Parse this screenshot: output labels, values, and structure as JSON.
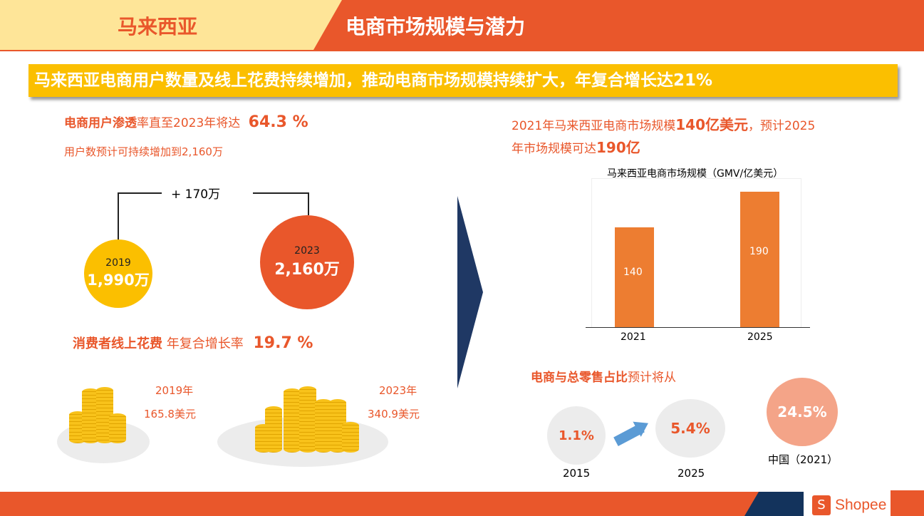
{
  "header": {
    "country": "马来西亚",
    "title": "电商市场规模与潜力"
  },
  "banner": "马来西亚电商用户数量及线上花费持续增加，推动电商市场规模持续扩大，年复合增长达21%",
  "users": {
    "line1_bold": "电商用户渗透",
    "line1_rest": "率直至2023年将达",
    "line1_value": "64.3 %",
    "line2": "用户数预计可持续增加到2,160万",
    "diff": "+ 170万",
    "y2019": "2019",
    "v2019": "1,990万",
    "y2023": "2023",
    "v2023": "2,160万"
  },
  "spend": {
    "label_bold": "消费者线上花费",
    "label_rest": "年复合增长率",
    "value": "19.7 %",
    "y2019": "2019年",
    "v2019": "165.8美元",
    "y2023": "2023年",
    "v2023": "340.9美元"
  },
  "market": {
    "line1a": "2021年马来西亚电商市场规模",
    "line1b": "140亿美元",
    "line1c": "，预计2025",
    "line2a": "年市场规模可达",
    "line2b": "190亿"
  },
  "chart_data": {
    "type": "bar",
    "title": "马来西亚电商市场规模（GMV/亿美元）",
    "categories": [
      "2021",
      "2025"
    ],
    "values": [
      140,
      190
    ],
    "ylim": [
      0,
      200
    ],
    "color": "#ed7d31",
    "grid": false
  },
  "retail": {
    "label_bold": "电商与总零售占比",
    "label_rest": "预计将从",
    "v2015": "1.1%",
    "y2015": "2015",
    "v2025": "5.4%",
    "y2025": "2025",
    "vchina": "24.5%",
    "ychina": "中国（2021）"
  },
  "footer": {
    "brand": "Shopee"
  },
  "colors": {
    "orange": "#e9572b",
    "yellow": "#fbbf00",
    "navy": "#1f3864",
    "bar": "#ed7d31"
  }
}
